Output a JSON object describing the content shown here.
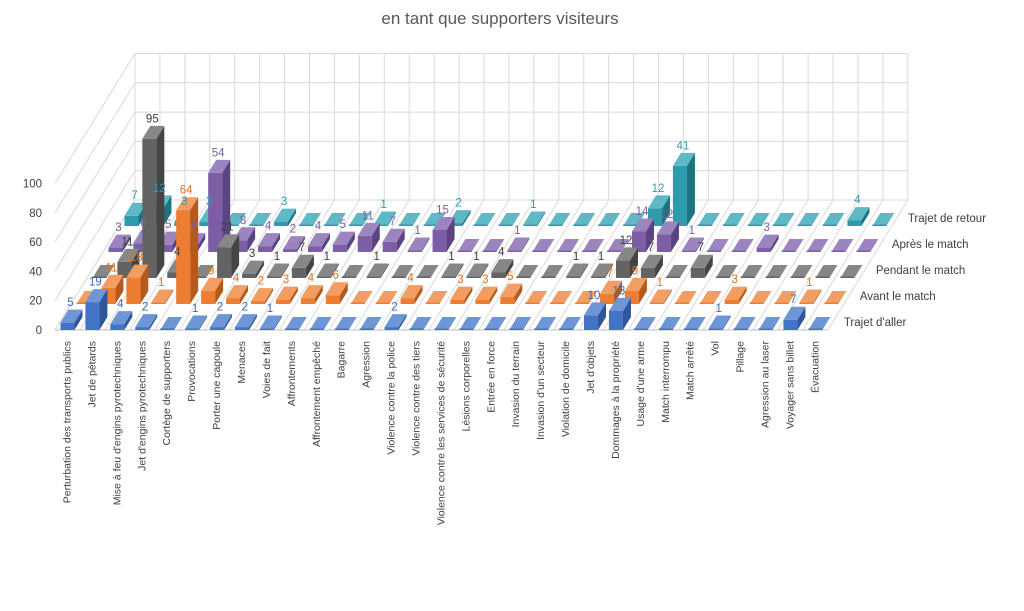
{
  "chart_data": {
    "type": "bar",
    "subtype": "3d-column",
    "title": "en tant que supporters visiteurs",
    "grid": true,
    "legend_position": "right-depth-axis",
    "value_axis": {
      "min": 0,
      "max": 100,
      "ticks": [
        0,
        20,
        40,
        60,
        80,
        100
      ]
    },
    "categories": [
      "Perturbation des transports publics",
      "Jet de pétards",
      "Mise à feu d'engins pyrotechniques",
      "Jet d'engins pyrotechniques",
      "Cortège de supporters",
      "Provocations",
      "Porter une cagoule",
      "Menaces",
      "Voies de fait",
      "Affrontements",
      "Affrontement empêché",
      "Bagarre",
      "Agression",
      "Violence contre la police",
      "Violence contre des tiers",
      "Violence contre les services de sécurité",
      "Lésions corporelles",
      "Entrée en force",
      "Invasion du terrain",
      "Invasion d'un secteur",
      "Violation de domicile",
      "Jet d'objets",
      "Dommages à la propriété",
      "Usage d'une arme",
      "Match interrompu",
      "Match arrêté",
      "Vol",
      "Pillage",
      "Agression au laser",
      "Voyager sans billet",
      "Évacuation"
    ],
    "series": [
      {
        "name": "Trajet d'aller",
        "color": "#4472C4",
        "color_side": "#2F559B",
        "color_top": "#6E95D6",
        "label_color": "#3B6BBB",
        "values": [
          5,
          19,
          4,
          2,
          0,
          1,
          2,
          2,
          1,
          0,
          0,
          0,
          0,
          2,
          0,
          0,
          0,
          0,
          0,
          0,
          0,
          10,
          13,
          0,
          0,
          0,
          1,
          0,
          0,
          7,
          0
        ]
      },
      {
        "name": "Avant le match",
        "color": "#ED7D31",
        "color_side": "#B55A1D",
        "color_top": "#F29D61",
        "label_color": "#E07420",
        "values": [
          0,
          11,
          18,
          1,
          64,
          9,
          4,
          2,
          3,
          4,
          6,
          0,
          0,
          4,
          0,
          3,
          3,
          5,
          0,
          0,
          0,
          7,
          9,
          1,
          0,
          0,
          3,
          0,
          0,
          1,
          0
        ]
      },
      {
        "name": "Pendant le match",
        "color": "#636363",
        "color_side": "#454545",
        "color_top": "#878787",
        "label_color": "#3F3F3F",
        "values": [
          0,
          11,
          95,
          4,
          0,
          21,
          3,
          1,
          7,
          1,
          0,
          1,
          0,
          0,
          1,
          1,
          4,
          0,
          0,
          1,
          1,
          12,
          7,
          0,
          7,
          0,
          0,
          0,
          0,
          0,
          0
        ]
      },
      {
        "name": "Après le match",
        "color": "#7B5EA6",
        "color_side": "#5C4384",
        "color_top": "#9C85BF",
        "label_color": "#7B5EA6",
        "values": [
          3,
          6,
          5,
          4,
          54,
          8,
          4,
          2,
          4,
          5,
          11,
          7,
          1,
          15,
          0,
          0,
          1,
          0,
          0,
          0,
          0,
          14,
          12,
          1,
          0,
          0,
          3,
          0,
          0,
          0,
          0
        ]
      },
      {
        "name": "Trajet de retour",
        "color": "#2E9BAC",
        "color_side": "#1E7380",
        "color_top": "#5FB8C6",
        "label_color": "#2E9BAC",
        "values": [
          7,
          12,
          3,
          3,
          0,
          0,
          3,
          0,
          0,
          0,
          1,
          0,
          0,
          2,
          0,
          0,
          1,
          0,
          0,
          0,
          0,
          12,
          41,
          0,
          0,
          0,
          0,
          0,
          0,
          4,
          0
        ]
      }
    ]
  }
}
